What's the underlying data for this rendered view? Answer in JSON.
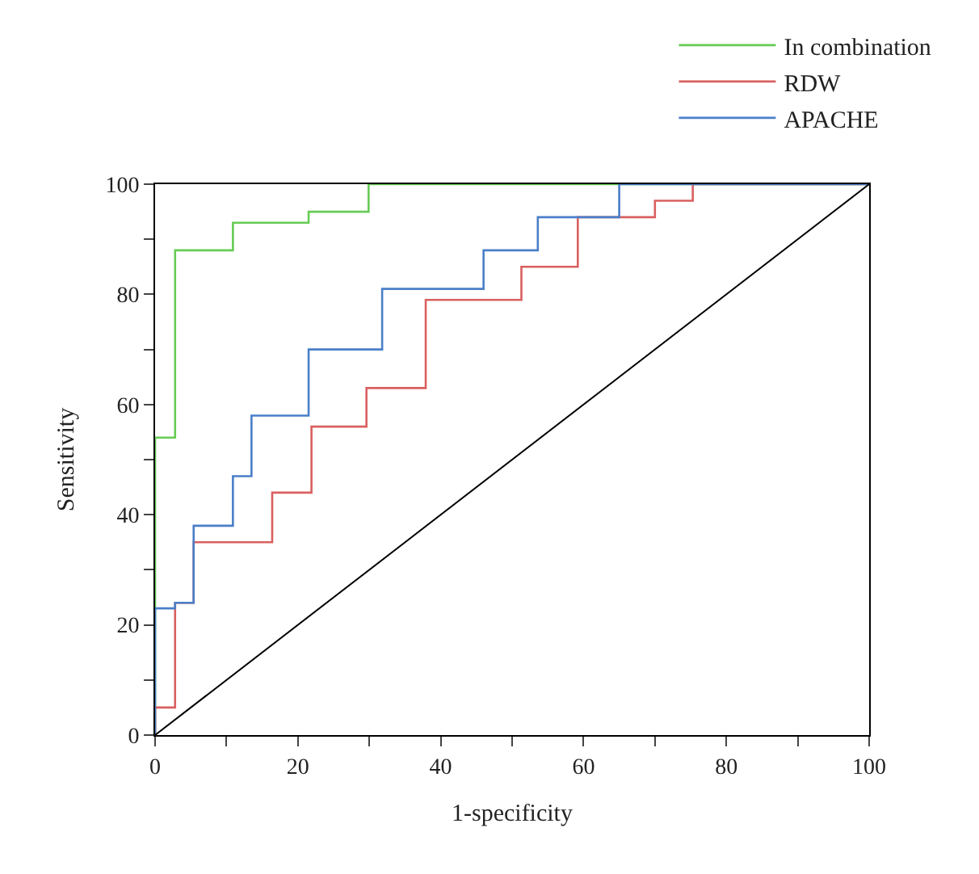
{
  "chart_data": {
    "type": "step",
    "xlabel": "1-specificity",
    "ylabel": "Sensitivity",
    "xlim": [
      0,
      100
    ],
    "ylim": [
      0,
      100
    ],
    "xticks": [
      0,
      {
        "value": 10,
        "label": null
      },
      20,
      {
        "value": 30,
        "label": null
      },
      40,
      {
        "value": 50,
        "label": null
      },
      60,
      {
        "value": 70,
        "label": null
      },
      80,
      {
        "value": 90,
        "label": null
      },
      100
    ],
    "yticks": [
      0,
      {
        "value": 10,
        "label": null
      },
      20,
      {
        "value": 30,
        "label": null
      },
      40,
      {
        "value": 50,
        "label": null
      },
      60,
      {
        "value": 70,
        "label": null
      },
      80,
      {
        "value": 90,
        "label": null
      },
      100
    ],
    "legend": "top right",
    "marker": "none",
    "line_style": "solid",
    "series": [
      {
        "name": "In combination",
        "color": "#66cc55",
        "x": [
          0,
          0,
          2.8,
          10.9,
          21.5,
          29.9,
          100
        ],
        "values": [
          0,
          54,
          88,
          93,
          95,
          100,
          100
        ]
      },
      {
        "name": "RDW",
        "color": "#d9605f",
        "x": [
          0,
          0,
          2.8,
          5.4,
          16.4,
          21.9,
          29.6,
          37.9,
          51.3,
          59.2,
          70,
          75.3,
          100
        ],
        "values": [
          0,
          5,
          24,
          35,
          44,
          56,
          63,
          79,
          85,
          94,
          97,
          100,
          100
        ]
      },
      {
        "name": "APACHE",
        "color": "#4a7fc8",
        "x": [
          0,
          0,
          2.8,
          5.4,
          10.9,
          13.5,
          21.5,
          31.8,
          46,
          53.6,
          65,
          100
        ],
        "values": [
          0,
          23,
          24,
          38,
          47,
          58,
          70,
          81,
          88,
          94,
          100,
          100
        ]
      },
      {
        "type": "line",
        "color": "#000000",
        "x": [
          0,
          100
        ],
        "values": [
          0,
          100
        ]
      }
    ]
  }
}
